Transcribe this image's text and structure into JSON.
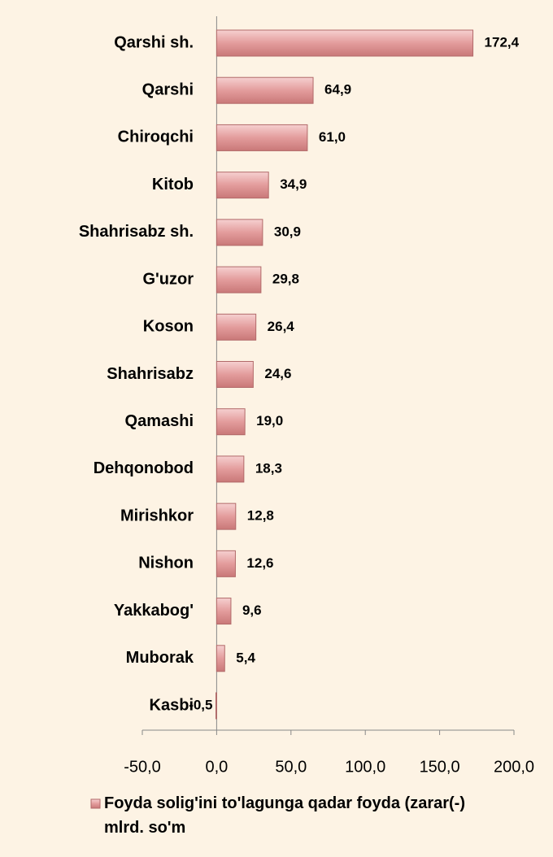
{
  "chart_data": {
    "type": "bar",
    "orientation": "horizontal",
    "categories": [
      "Qarshi sh.",
      "Qarshi",
      "Chiroqchi",
      "Kitob",
      "Shahrisabz sh.",
      "G'uzor",
      "Koson",
      "Shahrisabz",
      "Qamashi",
      "Dehqonobod",
      "Mirishkor",
      "Nishon",
      "Yakkabog'",
      "Muborak",
      "Kasbi"
    ],
    "series": [
      {
        "name": "Foyda solig'ini to'lagunga qadar foyda (zarar(-) mlrd. so'm",
        "color": "#e39c9c",
        "values": [
          172.4,
          64.9,
          61.0,
          34.9,
          30.9,
          29.8,
          26.4,
          24.6,
          19.0,
          18.3,
          12.8,
          12.6,
          9.6,
          5.4,
          -0.5
        ],
        "value_labels": [
          "172,4",
          "64,9",
          "61,0",
          "34,9",
          "30,9",
          "29,8",
          "26,4",
          "24,6",
          "19,0",
          "18,3",
          "12,8",
          "12,6",
          "9,6",
          "5,4",
          "-0,5"
        ]
      }
    ],
    "xlim": [
      -50,
      200
    ],
    "xticks": [
      {
        "value": -50,
        "label": "-50,0"
      },
      {
        "value": 0,
        "label": "0,0"
      },
      {
        "value": 50,
        "label": "50,0"
      },
      {
        "value": 100,
        "label": "100,0"
      },
      {
        "value": 150,
        "label": "150,0"
      },
      {
        "value": 200,
        "label": "200,0"
      }
    ],
    "legend": "bottom",
    "grid": false
  }
}
